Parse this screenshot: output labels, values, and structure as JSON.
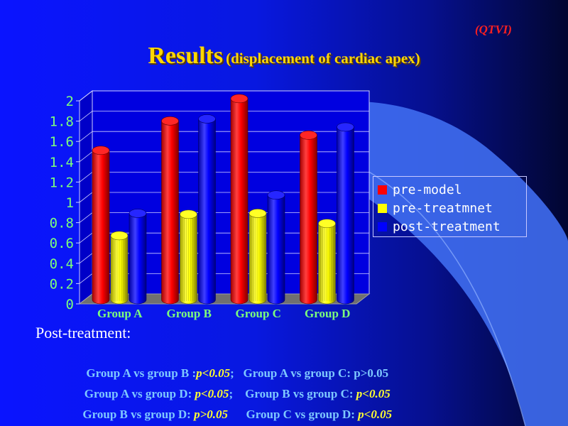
{
  "corner_label": "(QTVI)",
  "title": {
    "main": "Results",
    "sub": "(displacement of cardiac apex)"
  },
  "chart_data": {
    "type": "bar",
    "categories": [
      "Group A",
      "Group B",
      "Group C",
      "Group D"
    ],
    "series": [
      {
        "name": "pre-model",
        "color": "#ff0000",
        "values": [
          1.47,
          1.76,
          1.98,
          1.62
        ]
      },
      {
        "name": "pre-treatmnet",
        "color": "#ffff00",
        "values": [
          0.63,
          0.84,
          0.85,
          0.75
        ]
      },
      {
        "name": "post-treatment",
        "color": "#0000ff",
        "values": [
          0.85,
          1.78,
          1.03,
          1.7
        ]
      }
    ],
    "yticks": [
      "0",
      "0.2",
      "0.4",
      "0.6",
      "0.8",
      "1",
      "1.2",
      "1.4",
      "1.6",
      "1.8",
      "2"
    ],
    "ylim": [
      0,
      2
    ],
    "grid": true,
    "legend_position": "right",
    "style": "3d-cylinder"
  },
  "post_treatment": {
    "heading": "Post-treatment:",
    "comparisons": [
      [
        {
          "label": "Group A vs group B :",
          "p": "p<0.05",
          "sep": ";   "
        },
        {
          "label": "Group A vs group C: p>0.05",
          "p": "",
          "sep": ""
        }
      ],
      [
        {
          "label": "Group A vs group D: ",
          "p": "p<0.05",
          "sep": ";    "
        },
        {
          "label": "Group B vs group C: ",
          "p": "p<0.05",
          "sep": ""
        }
      ],
      [
        {
          "label": "Group B vs group D: ",
          "p": "p>0.05",
          "sep": "      "
        },
        {
          "label": "Group C vs group D: ",
          "p": "p<0.05",
          "sep": ""
        }
      ]
    ]
  }
}
